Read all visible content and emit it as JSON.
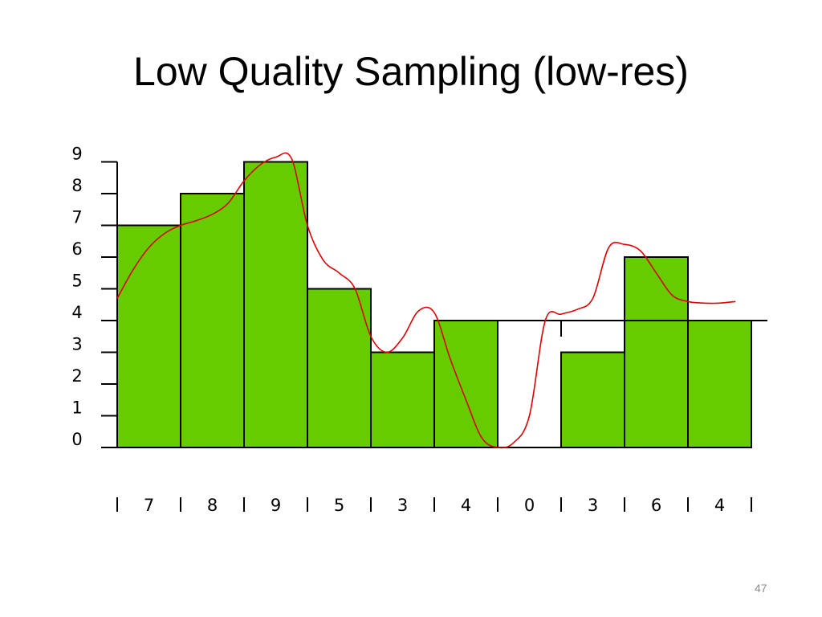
{
  "slide": {
    "title": "Low Quality Sampling (low-res)",
    "page_number": "47"
  },
  "chart_data": {
    "type": "bar",
    "categories": [
      "7",
      "8",
      "9",
      "5",
      "3",
      "4",
      "0",
      "3",
      "6",
      "4"
    ],
    "values": [
      7,
      8,
      9,
      5,
      3,
      4,
      0,
      3,
      6,
      4
    ],
    "bottom_labels": [
      "7",
      "8",
      "9",
      "5",
      "3",
      "4",
      "0",
      "3",
      "6",
      "4"
    ],
    "yticks": [
      0,
      1,
      2,
      3,
      4,
      5,
      6,
      7,
      8,
      9
    ],
    "ylim": [
      0,
      9
    ],
    "reference_level": 4,
    "grid": false,
    "title": "",
    "xlabel": "",
    "ylabel": "",
    "colors": {
      "bar": "#66cc00",
      "curve": "#dd0000",
      "axis": "#000000"
    },
    "signal_curve": {
      "x": [
        0.0,
        0.25,
        0.5,
        0.75,
        1.0,
        1.25,
        1.5,
        1.75,
        2.0,
        2.25,
        2.5,
        2.75,
        3.0,
        3.25,
        3.5,
        3.75,
        4.0,
        4.25,
        4.5,
        4.75,
        5.0,
        5.25,
        5.5,
        5.75,
        6.0,
        6.25,
        6.5,
        6.75,
        7.0,
        7.25,
        7.5,
        7.75,
        8.0,
        8.25,
        8.5,
        8.75,
        9.0,
        9.25,
        9.5,
        9.75
      ],
      "y": [
        4.7,
        5.6,
        6.3,
        6.75,
        7.0,
        7.15,
        7.35,
        7.7,
        8.4,
        8.9,
        9.15,
        9.1,
        7.0,
        5.9,
        5.5,
        5.0,
        3.5,
        3.0,
        3.45,
        4.3,
        4.25,
        2.8,
        1.5,
        0.3,
        0.0,
        0.15,
        1.0,
        4.0,
        4.2,
        4.35,
        4.7,
        6.3,
        6.4,
        6.2,
        5.5,
        4.8,
        4.6,
        4.55,
        4.55,
        4.6
      ]
    }
  }
}
